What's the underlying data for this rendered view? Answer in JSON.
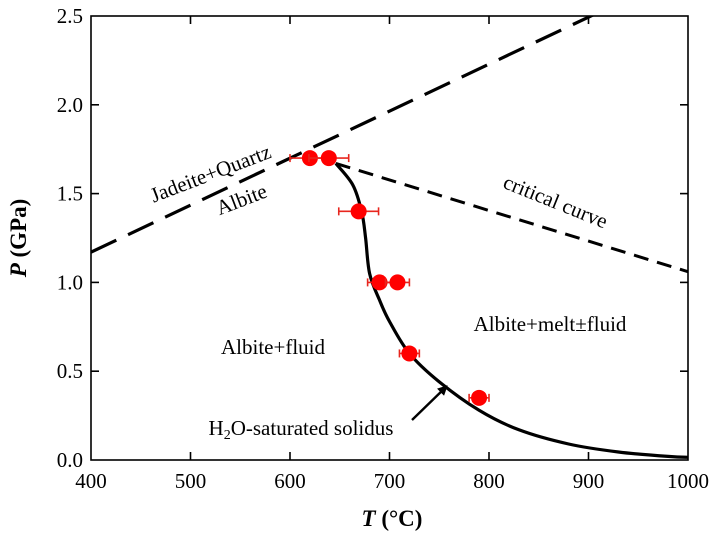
{
  "chart_data": {
    "type": "scatter",
    "xlabel": {
      "italic": "T",
      "rest": " (°C)"
    },
    "ylabel": {
      "italic": "P",
      "rest": " (GPa)"
    },
    "xlim": [
      400,
      1000
    ],
    "ylim": [
      0,
      2.5
    ],
    "x_ticks": [
      "400",
      "500",
      "600",
      "700",
      "800",
      "900",
      "1000"
    ],
    "y_ticks": [
      "0.0",
      "0.5",
      "1.0",
      "1.5",
      "2.0",
      "2.5"
    ],
    "grid": false,
    "points": [
      {
        "x": 620,
        "y": 1.7,
        "xerr": 20
      },
      {
        "x": 639,
        "y": 1.7,
        "xerr": 20
      },
      {
        "x": 669,
        "y": 1.4,
        "xerr": 20
      },
      {
        "x": 690,
        "y": 1.0,
        "xerr": 12
      },
      {
        "x": 708,
        "y": 1.0,
        "xerr": 12
      },
      {
        "x": 720,
        "y": 0.6,
        "xerr": 10
      },
      {
        "x": 790,
        "y": 0.35,
        "xerr": 10
      }
    ],
    "lines": {
      "jadeite_quartz_albite": {
        "style": "long-dash",
        "x": [
          400,
          910
        ],
        "y": [
          1.17,
          2.52
        ]
      },
      "critical_curve": {
        "style": "short-dash",
        "x": [
          646,
          1000
        ],
        "y": [
          1.67,
          1.06
        ]
      },
      "solidus": {
        "style": "solid",
        "x": [
          646,
          663,
          672,
          676,
          680,
          690,
          700,
          720,
          750,
          790,
          830,
          880,
          930,
          980,
          1000
        ],
        "y": [
          1.67,
          1.55,
          1.4,
          1.25,
          1.05,
          0.9,
          0.78,
          0.6,
          0.44,
          0.28,
          0.17,
          0.09,
          0.045,
          0.02,
          0.015
        ]
      }
    },
    "annotations": {
      "jadeite_quartz": "Jadeite+Quartz",
      "albite": "Albite",
      "critical_curve": "critical curve",
      "albite_fluid": "Albite+fluid",
      "albite_melt_fluid": "Albite+melt±fluid",
      "solidus": {
        "pre": "H",
        "sub": "2",
        "post": "O-saturated solidus"
      }
    },
    "colors": {
      "points": "#ff0000",
      "errorbars": "#e8261e",
      "lines": "#000000"
    }
  }
}
